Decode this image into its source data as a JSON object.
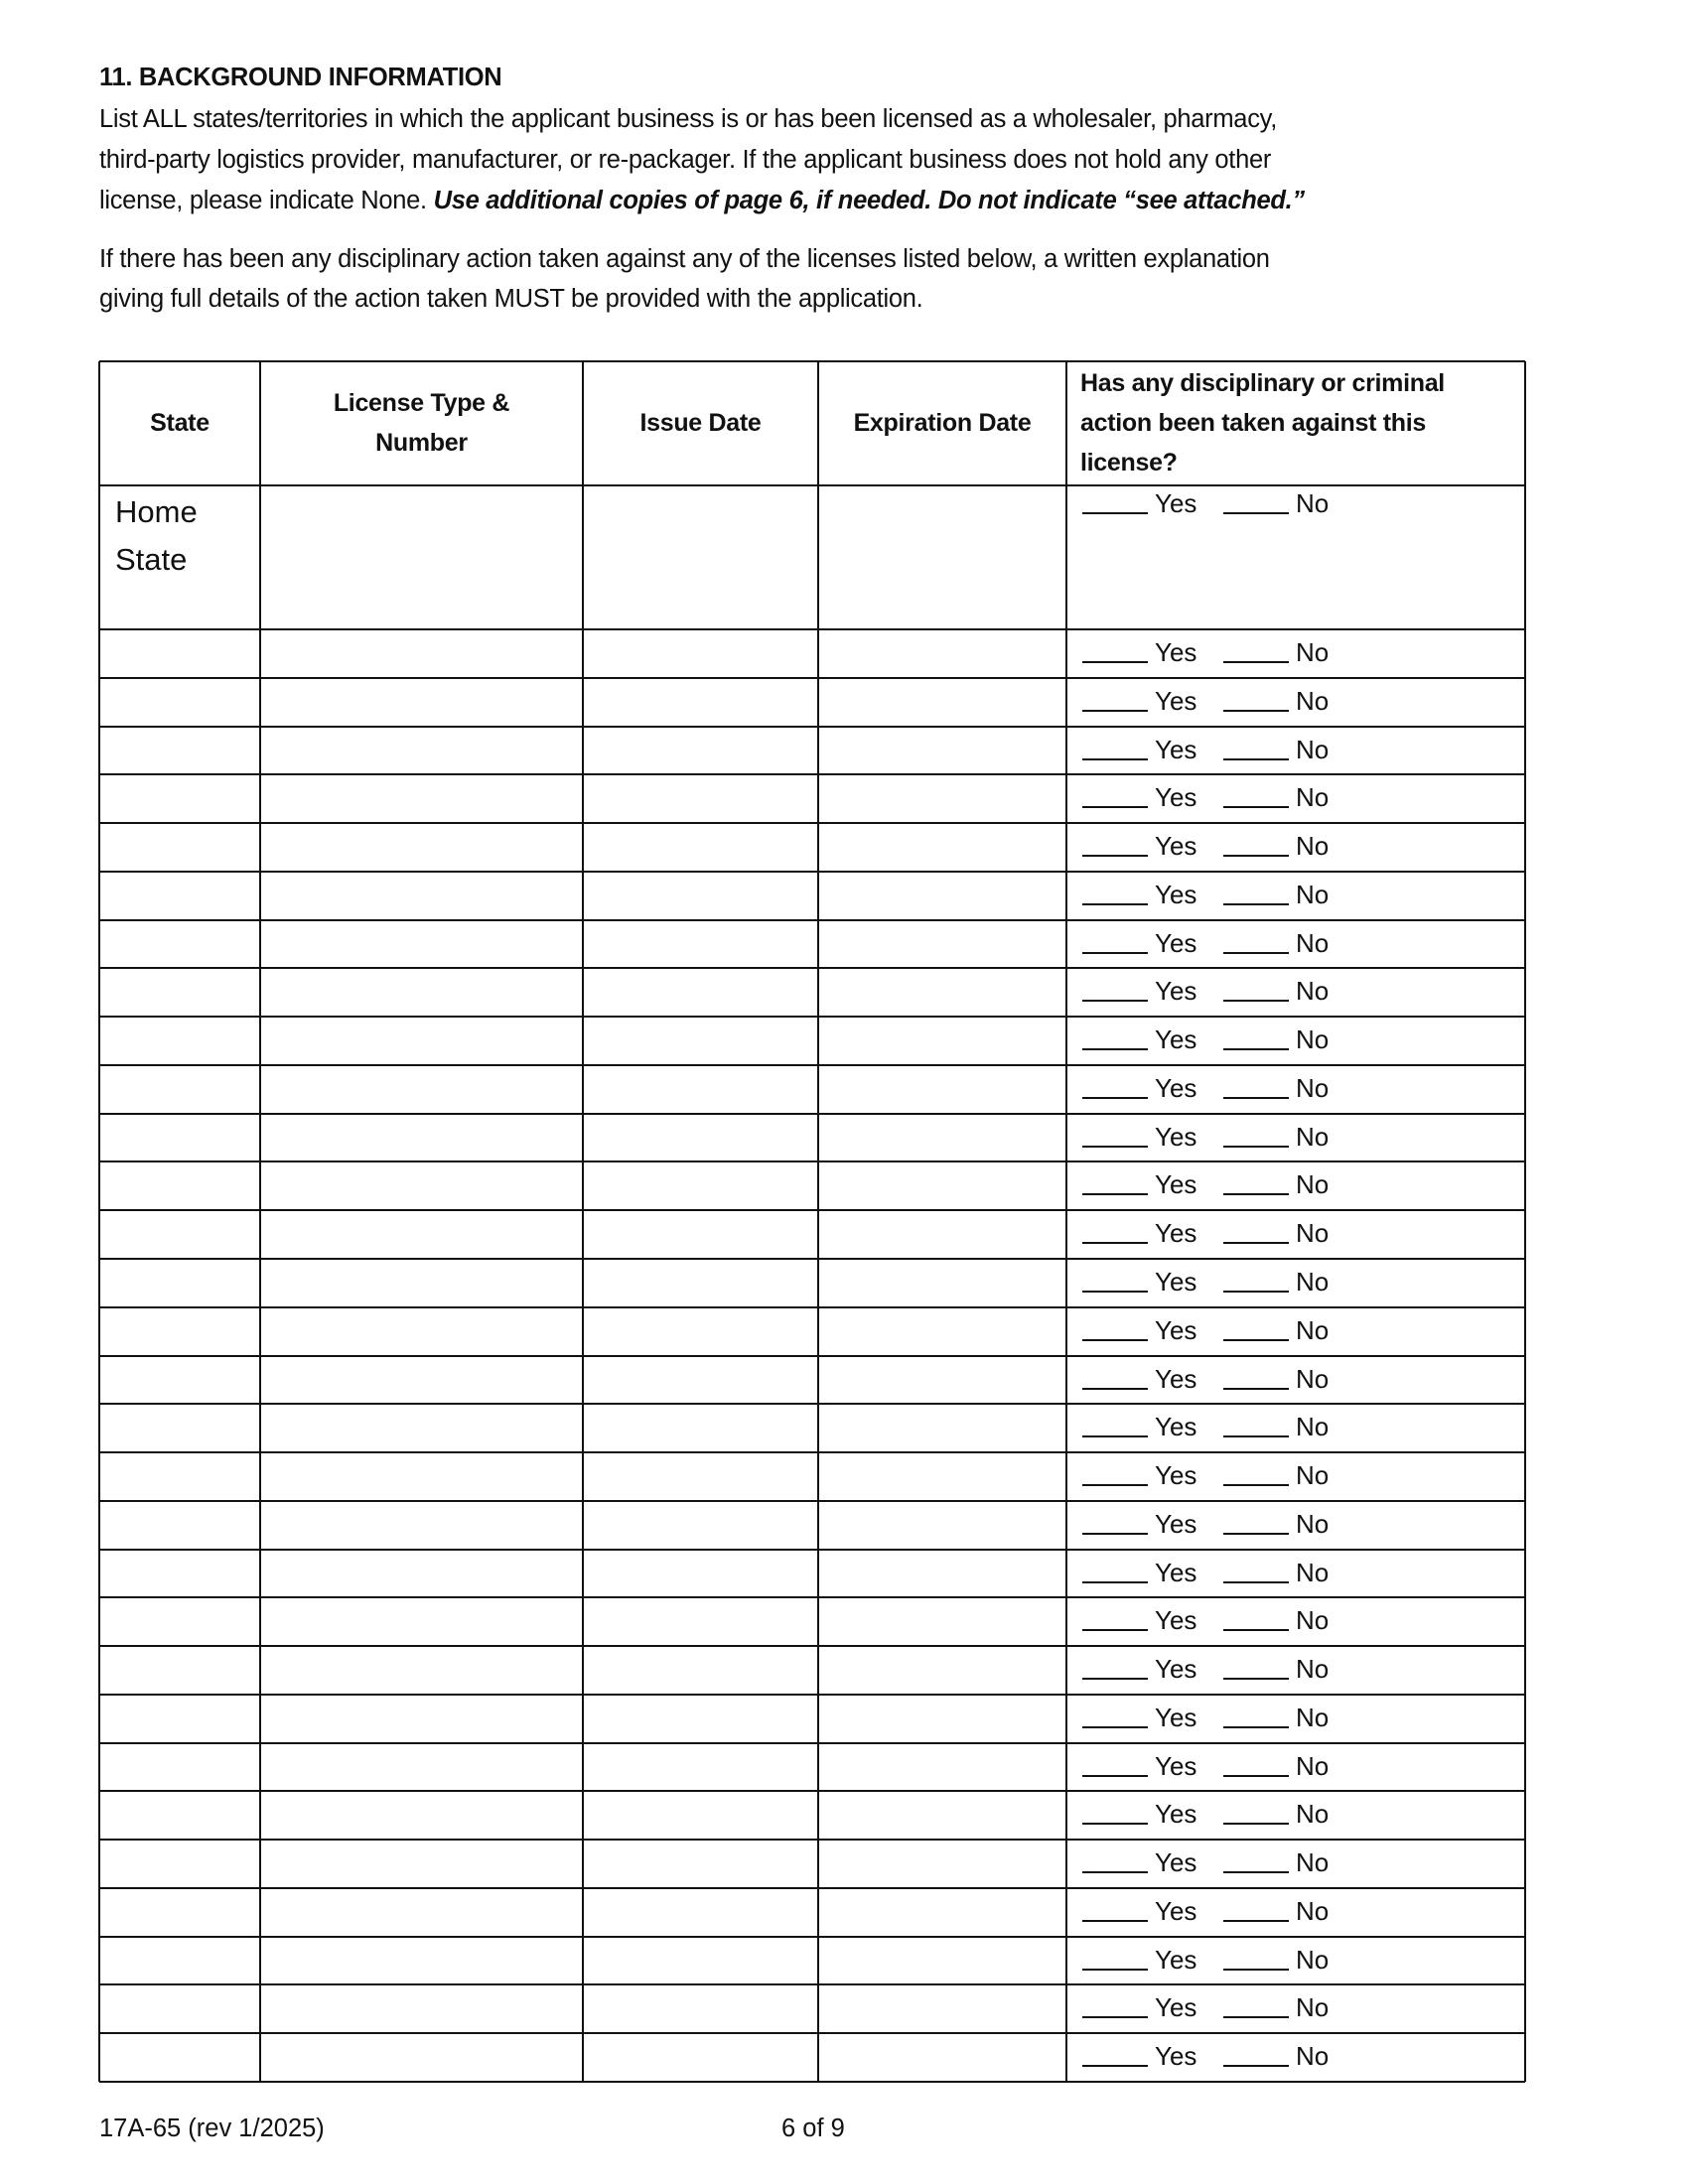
{
  "section": {
    "title": "11. BACKGROUND INFORMATION",
    "para1_lines": [
      "List ALL states/territories in which the applicant business is or has been licensed as a wholesaler, pharmacy,",
      "third-party logistics provider, manufacturer, or re-packager. If the applicant business does not hold any other",
      "license, please indicate None. "
    ],
    "para1_emphasis": "Use additional copies of page 6, if needed. Do not indicate “see attached.”",
    "para2_lines": [
      "If there has been any disciplinary action taken against any of the licenses listed below, a written explanation",
      "giving full details of the action taken MUST be provided with the application."
    ]
  },
  "table": {
    "headers": [
      "State",
      "License Type & Number",
      "Issue Date",
      "Expiration Date",
      "Has any disciplinary or criminal action been taken against this license?"
    ],
    "header_lines": {
      "license": [
        "License Type &",
        "Number"
      ],
      "action": [
        "Has any disciplinary or criminal",
        "action been taken against this",
        "license?"
      ]
    },
    "home_row": {
      "state_lines": [
        "Home",
        "State"
      ],
      "yes": "Yes",
      "no": "No"
    },
    "option_yes": "Yes",
    "option_no": "No",
    "rows": [
      {},
      {},
      {},
      {},
      {},
      {},
      {},
      {},
      {},
      {},
      {},
      {},
      {},
      {},
      {},
      {},
      {},
      {},
      {},
      {},
      {},
      {},
      {},
      {},
      {},
      {},
      {},
      {},
      {},
      {}
    ]
  },
  "footer": {
    "form_id": "17A-65 (rev 1/2025)",
    "page": "6 of 9"
  }
}
